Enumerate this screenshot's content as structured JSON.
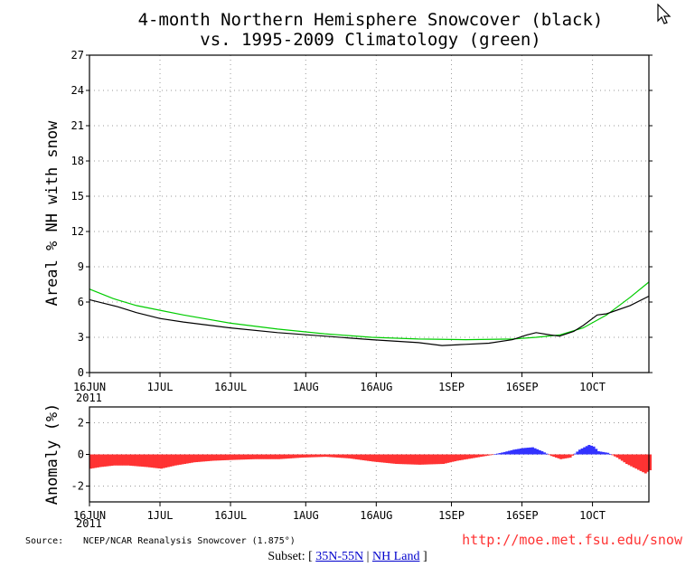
{
  "chart_data": [
    {
      "type": "line",
      "title_line1": "4-month Northern Hemisphere Snowcover (black)",
      "title_line2": "vs. 1995-2009 Climatology (green)",
      "ylabel": "Areal % NH with snow",
      "ylim": [
        0,
        27
      ],
      "yticks": [
        0,
        3,
        6,
        9,
        12,
        15,
        18,
        21,
        24,
        27
      ],
      "xlim_days": [
        0,
        119
      ],
      "xticks": [
        {
          "day": 0,
          "label": "16JUN"
        },
        {
          "day": 15,
          "label": "1JUL"
        },
        {
          "day": 30,
          "label": "16JUL"
        },
        {
          "day": 46,
          "label": "1AUG"
        },
        {
          "day": 61,
          "label": "16AUG"
        },
        {
          "day": 77,
          "label": "1SEP"
        },
        {
          "day": 92,
          "label": "16SEP"
        },
        {
          "day": 107,
          "label": "1OCT"
        }
      ],
      "year_label": "2011",
      "grid": true,
      "series": [
        {
          "color": "#00cc00",
          "x": [
            0,
            5,
            10,
            15,
            20,
            30,
            40,
            50,
            60,
            70,
            80,
            90,
            95,
            100,
            105,
            110,
            115,
            119
          ],
          "y": [
            7.1,
            6.3,
            5.7,
            5.3,
            4.9,
            4.2,
            3.7,
            3.3,
            3.0,
            2.85,
            2.8,
            2.85,
            3.0,
            3.2,
            3.8,
            4.9,
            6.4,
            7.7
          ]
        },
        {
          "color": "#000000",
          "x": [
            0,
            3,
            6,
            10,
            15,
            20,
            30,
            40,
            50,
            60,
            70,
            75,
            80,
            85,
            90,
            93,
            95,
            98,
            100,
            103,
            105,
            108,
            110,
            115,
            119
          ],
          "y": [
            6.2,
            5.9,
            5.6,
            5.1,
            4.6,
            4.3,
            3.8,
            3.4,
            3.1,
            2.8,
            2.55,
            2.3,
            2.4,
            2.5,
            2.8,
            3.2,
            3.4,
            3.2,
            3.1,
            3.5,
            4.0,
            4.9,
            5.0,
            5.7,
            6.5
          ]
        }
      ]
    },
    {
      "type": "bar",
      "ylabel": "Anomaly (%)",
      "ylim": [
        -3,
        3
      ],
      "yticks": [
        -2,
        0,
        2
      ],
      "xlim_days": [
        0,
        119
      ],
      "year_label": "2011",
      "positive_color": "#3333ff",
      "negative_color": "#ff3333",
      "anomaly": {
        "x": [
          0,
          2,
          5,
          8,
          12,
          15,
          18,
          22,
          26,
          30,
          35,
          40,
          45,
          50,
          55,
          60,
          65,
          70,
          75,
          78,
          82,
          85,
          88,
          90,
          92,
          94,
          96,
          98,
          100,
          102,
          104,
          106,
          107,
          108,
          110,
          112,
          114,
          116,
          118,
          119
        ],
        "y": [
          -0.9,
          -0.8,
          -0.7,
          -0.7,
          -0.8,
          -0.9,
          -0.7,
          -0.5,
          -0.4,
          -0.35,
          -0.3,
          -0.3,
          -0.2,
          -0.15,
          -0.25,
          -0.45,
          -0.6,
          -0.65,
          -0.6,
          -0.4,
          -0.2,
          -0.05,
          0.15,
          0.3,
          0.4,
          0.45,
          0.2,
          -0.1,
          -0.3,
          -0.2,
          0.3,
          0.6,
          0.5,
          0.2,
          0.1,
          -0.2,
          -0.6,
          -0.9,
          -1.2,
          -1.0
        ]
      }
    }
  ],
  "source": {
    "label": "Source:",
    "text": "NCEP/NCAR Reanalysis Snowcover (1.875°)",
    "url": "http://moe.met.fsu.edu/snow"
  },
  "footer": {
    "prefix": "Subset: [",
    "link1": "35N-55N",
    "separator": "|",
    "link2": "NH Land",
    "suffix": "]"
  }
}
